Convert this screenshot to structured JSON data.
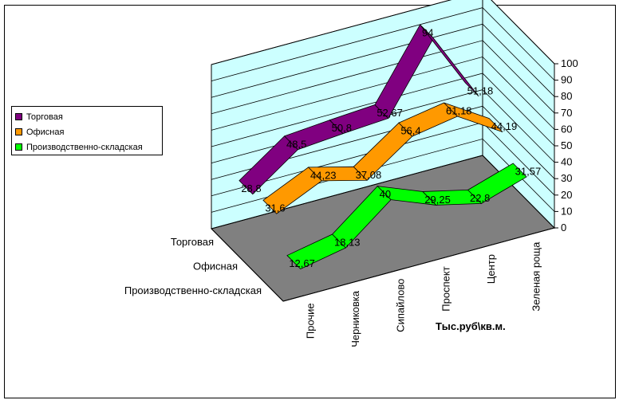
{
  "chart_data": {
    "type": "line",
    "categories": [
      "Прочие",
      "Черниковка",
      "Сипайлово",
      "Проспект",
      "Центр",
      "Зеленая роща"
    ],
    "series": [
      {
        "name": "Торговая",
        "values": [
          28.8,
          48.5,
          50.8,
          52.67,
          94,
          51.18
        ],
        "labels": [
          "28,8",
          "48,5",
          "50,8",
          "52,67",
          "94",
          "51,18"
        ],
        "color": "#800080"
      },
      {
        "name": "Офисная",
        "values": [
          31.6,
          44.23,
          37.08,
          56.4,
          61.18,
          44.19
        ],
        "labels": [
          "31,6",
          "44,23",
          "37,08",
          "56,4",
          "61,18",
          "44,19"
        ],
        "color": "#ff9900"
      },
      {
        "name": "Производственно-складская",
        "values": [
          12.67,
          18.13,
          40,
          29.25,
          22.8,
          31.57
        ],
        "labels": [
          "12,67",
          "18,13",
          "40",
          "29,25",
          "22,8",
          "31,57"
        ],
        "color": "#00ff00"
      }
    ],
    "depth_labels": [
      "Торговая",
      "Офисная",
      "Производственно-складская"
    ],
    "ylim": [
      0,
      100
    ],
    "yticks": [
      "0",
      "10",
      "20",
      "30",
      "40",
      "50",
      "60",
      "70",
      "80",
      "90",
      "100"
    ],
    "axis_title": "Тыс.руб\\кв.м.",
    "grid": true,
    "legend_position": "left",
    "wall_color": "#ccffff",
    "floor_color": "#808080"
  }
}
